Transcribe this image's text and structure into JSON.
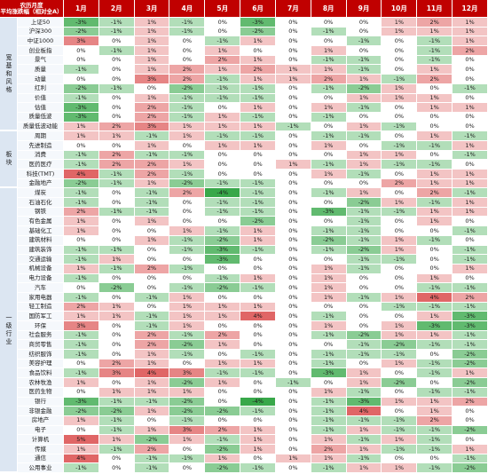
{
  "header": {
    "title_line1": "农历月度",
    "title_line2": "平均涨跌幅（相对全A）",
    "months": [
      "1月",
      "2月",
      "3月",
      "4月",
      "5月",
      "6月",
      "7月",
      "8月",
      "9月",
      "10月",
      "11月",
      "12月"
    ]
  },
  "colors": {
    "header_bg": "#c00000",
    "positive": "#e06666",
    "negative": "#38a84a",
    "group_bg": "#dce6f2"
  },
  "groups": [
    {
      "name": "宽基和风格",
      "rows": [
        {
          "label": "上证50",
          "values": [
            "-3%",
            "-1%",
            "1%",
            "-1%",
            "0%",
            "-3%",
            "0%",
            "0%",
            "0%",
            "1%",
            "2%",
            "1%"
          ]
        },
        {
          "label": "沪深300",
          "values": [
            "-2%",
            "-1%",
            "1%",
            "-1%",
            "0%",
            "-2%",
            "0%",
            "-1%",
            "0%",
            "1%",
            "1%",
            "1%"
          ]
        },
        {
          "label": "中证1000",
          "values": [
            "3%",
            "0%",
            "1%",
            "0%",
            "-1%",
            "1%",
            "0%",
            "0%",
            "-1%",
            "0%",
            "-1%",
            "1%"
          ]
        },
        {
          "label": "创业板指",
          "values": [
            "0%",
            "-1%",
            "1%",
            "0%",
            "1%",
            "0%",
            "0%",
            "1%",
            "0%",
            "0%",
            "-1%",
            "2%"
          ]
        },
        {
          "label": "景气",
          "values": [
            "0%",
            "0%",
            "1%",
            "0%",
            "2%",
            "1%",
            "0%",
            "-1%",
            "-1%",
            "0%",
            "-1%",
            "0%"
          ]
        },
        {
          "label": "质量",
          "values": [
            "-1%",
            "0%",
            "1%",
            "2%",
            "1%",
            "2%",
            "1%",
            "1%",
            "-1%",
            "0%",
            "1%",
            "0%"
          ]
        },
        {
          "label": "动量",
          "values": [
            "0%",
            "0%",
            "3%",
            "2%",
            "-1%",
            "1%",
            "1%",
            "2%",
            "1%",
            "-1%",
            "2%",
            "0%"
          ]
        },
        {
          "label": "红利",
          "values": [
            "-2%",
            "-1%",
            "0%",
            "-2%",
            "-1%",
            "-1%",
            "0%",
            "-1%",
            "-2%",
            "1%",
            "0%",
            "-1%"
          ]
        },
        {
          "label": "价值",
          "values": [
            "-1%",
            "0%",
            "1%",
            "-1%",
            "-1%",
            "-1%",
            "0%",
            "0%",
            "1%",
            "1%",
            "1%",
            "0%"
          ]
        },
        {
          "label": "估值",
          "values": [
            "-3%",
            "0%",
            "2%",
            "-1%",
            "0%",
            "1%",
            "0%",
            "1%",
            "-1%",
            "0%",
            "1%",
            "1%"
          ]
        },
        {
          "label": "质量低波",
          "values": [
            "-3%",
            "0%",
            "2%",
            "-1%",
            "1%",
            "-1%",
            "0%",
            "-1%",
            "0%",
            "0%",
            "0%",
            "0%"
          ]
        },
        {
          "label": "质量低波动能",
          "values": [
            "1%",
            "2%",
            "3%",
            "1%",
            "1%",
            "1%",
            "-1%",
            "0%",
            "1%",
            "-1%",
            "0%",
            "0%"
          ]
        }
      ]
    },
    {
      "name": "板块",
      "rows": [
        {
          "label": "周期",
          "values": [
            "1%",
            "1%",
            "-1%",
            "1%",
            "-1%",
            "-1%",
            "0%",
            "-1%",
            "-1%",
            "0%",
            "1%",
            "-1%"
          ]
        },
        {
          "label": "先进制造",
          "values": [
            "0%",
            "0%",
            "1%",
            "0%",
            "1%",
            "1%",
            "0%",
            "1%",
            "0%",
            "-1%",
            "-1%",
            "1%"
          ]
        },
        {
          "label": "消费",
          "values": [
            "-1%",
            "2%",
            "-1%",
            "-1%",
            "0%",
            "0%",
            "0%",
            "0%",
            "1%",
            "1%",
            "0%",
            "-1%"
          ]
        },
        {
          "label": "医药医疗",
          "values": [
            "-1%",
            "2%",
            "2%",
            "1%",
            "0%",
            "0%",
            "1%",
            "-1%",
            "1%",
            "-1%",
            "-1%",
            "0%"
          ]
        },
        {
          "label": "科技(TMT)",
          "values": [
            "4%",
            "-1%",
            "2%",
            "-1%",
            "0%",
            "0%",
            "0%",
            "1%",
            "-1%",
            "0%",
            "1%",
            "1%"
          ]
        },
        {
          "label": "金融地产",
          "values": [
            "-2%",
            "-1%",
            "1%",
            "-2%",
            "-1%",
            "-1%",
            "0%",
            "0%",
            "0%",
            "2%",
            "1%",
            "1%"
          ]
        }
      ]
    },
    {
      "name": "一级行业",
      "rows": [
        {
          "label": "煤炭",
          "values": [
            "-1%",
            "0%",
            "-1%",
            "2%",
            "-4%",
            "-1%",
            "0%",
            "-1%",
            "1%",
            "0%",
            "2%",
            "-1%"
          ]
        },
        {
          "label": "石油石化",
          "values": [
            "-1%",
            "0%",
            "-1%",
            "0%",
            "-1%",
            "-1%",
            "0%",
            "0%",
            "-2%",
            "1%",
            "-1%",
            "1%"
          ]
        },
        {
          "label": "钢铁",
          "values": [
            "2%",
            "-1%",
            "-1%",
            "0%",
            "-1%",
            "-1%",
            "0%",
            "-3%",
            "-1%",
            "-1%",
            "1%",
            "1%"
          ]
        },
        {
          "label": "有色金属",
          "values": [
            "1%",
            "0%",
            "1%",
            "0%",
            "0%",
            "-2%",
            "0%",
            "0%",
            "-1%",
            "0%",
            "1%",
            "0%"
          ]
        },
        {
          "label": "基础化工",
          "values": [
            "1%",
            "0%",
            "0%",
            "1%",
            "-1%",
            "1%",
            "0%",
            "-1%",
            "-1%",
            "0%",
            "0%",
            "-1%"
          ]
        },
        {
          "label": "建筑材料",
          "values": [
            "0%",
            "0%",
            "1%",
            "-1%",
            "-2%",
            "1%",
            "0%",
            "-2%",
            "-1%",
            "1%",
            "-1%",
            "0%"
          ]
        },
        {
          "label": "建筑装饰",
          "values": [
            "-1%",
            "-1%",
            "0%",
            "-1%",
            "-3%",
            "-1%",
            "0%",
            "-1%",
            "-2%",
            "1%",
            "0%",
            "-1%"
          ]
        },
        {
          "label": "交通运输",
          "values": [
            "-1%",
            "1%",
            "0%",
            "0%",
            "-3%",
            "0%",
            "0%",
            "0%",
            "-1%",
            "-1%",
            "0%",
            "-1%"
          ]
        },
        {
          "label": "机械设备",
          "values": [
            "1%",
            "-1%",
            "2%",
            "-1%",
            "0%",
            "0%",
            "0%",
            "1%",
            "-1%",
            "0%",
            "0%",
            "1%"
          ]
        },
        {
          "label": "电力设备",
          "values": [
            "-1%",
            "0%",
            "0%",
            "0%",
            "-1%",
            "1%",
            "0%",
            "1%",
            "0%",
            "0%",
            "1%",
            "0%"
          ]
        },
        {
          "label": "汽车",
          "values": [
            "0%",
            "-2%",
            "0%",
            "-1%",
            "-2%",
            "-1%",
            "0%",
            "1%",
            "0%",
            "0%",
            "-1%",
            "-1%"
          ]
        },
        {
          "label": "家用电器",
          "values": [
            "-1%",
            "0%",
            "-1%",
            "1%",
            "0%",
            "0%",
            "0%",
            "1%",
            "-1%",
            "1%",
            "4%",
            "2%"
          ]
        },
        {
          "label": "轻工制造",
          "values": [
            "2%",
            "1%",
            "0%",
            "1%",
            "1%",
            "1%",
            "0%",
            "0%",
            "0%",
            "-1%",
            "-1%",
            "-1%"
          ]
        },
        {
          "label": "国防军工",
          "values": [
            "1%",
            "1%",
            "-1%",
            "1%",
            "1%",
            "4%",
            "0%",
            "-1%",
            "0%",
            "0%",
            "1%",
            "-3%"
          ]
        },
        {
          "label": "环保",
          "values": [
            "3%",
            "0%",
            "-1%",
            "1%",
            "0%",
            "0%",
            "0%",
            "1%",
            "0%",
            "1%",
            "-3%",
            "-3%"
          ]
        },
        {
          "label": "社会服务",
          "values": [
            "-1%",
            "0%",
            "2%",
            "-1%",
            "2%",
            "0%",
            "0%",
            "-1%",
            "-2%",
            "1%",
            "1%",
            "-1%"
          ]
        },
        {
          "label": "商贸零售",
          "values": [
            "-1%",
            "0%",
            "2%",
            "-2%",
            "1%",
            "0%",
            "0%",
            "0%",
            "-1%",
            "-2%",
            "-1%",
            "-1%"
          ]
        },
        {
          "label": "纺织服饰",
          "values": [
            "-1%",
            "0%",
            "1%",
            "-1%",
            "0%",
            "-1%",
            "0%",
            "-1%",
            "-1%",
            "-1%",
            "0%",
            "-2%"
          ]
        },
        {
          "label": "美容护理",
          "values": [
            "0%",
            "2%",
            "1%",
            "0%",
            "1%",
            "1%",
            "0%",
            "-1%",
            "0%",
            "1%",
            "-1%",
            "-2%"
          ]
        },
        {
          "label": "食品饮料",
          "values": [
            "-1%",
            "3%",
            "4%",
            "3%",
            "-1%",
            "-1%",
            "0%",
            "-3%",
            "1%",
            "0%",
            "-1%",
            "1%"
          ]
        },
        {
          "label": "农林牧渔",
          "values": [
            "1%",
            "0%",
            "1%",
            "-2%",
            "1%",
            "0%",
            "-1%",
            "0%",
            "1%",
            "-2%",
            "0%",
            "-2%"
          ]
        },
        {
          "label": "医药生物",
          "values": [
            "0%",
            "1%",
            "1%",
            "1%",
            "0%",
            "0%",
            "0%",
            "1%",
            "-1%",
            "0%",
            "-1%",
            "-1%"
          ]
        },
        {
          "label": "银行",
          "values": [
            "-3%",
            "-1%",
            "-1%",
            "-2%",
            "0%",
            "-4%",
            "0%",
            "-1%",
            "-3%",
            "1%",
            "1%",
            "2%"
          ]
        },
        {
          "label": "非银金融",
          "values": [
            "-2%",
            "-2%",
            "1%",
            "-2%",
            "-2%",
            "-1%",
            "0%",
            "-1%",
            "4%",
            "0%",
            "1%",
            "0%"
          ]
        },
        {
          "label": "房地产",
          "values": [
            "1%",
            "-1%",
            "0%",
            "-1%",
            "0%",
            "0%",
            "0%",
            "-1%",
            "-1%",
            "-1%",
            "2%",
            "0%"
          ]
        },
        {
          "label": "电子",
          "values": [
            "0%",
            "-1%",
            "1%",
            "3%",
            "2%",
            "1%",
            "0%",
            "-1%",
            "1%",
            "-1%",
            "-1%",
            "-2%"
          ]
        },
        {
          "label": "计算机",
          "values": [
            "5%",
            "1%",
            "-2%",
            "1%",
            "-1%",
            "1%",
            "0%",
            "1%",
            "-1%",
            "1%",
            "-1%",
            "0%"
          ]
        },
        {
          "label": "传媒",
          "values": [
            "1%",
            "-1%",
            "2%",
            "0%",
            "-2%",
            "1%",
            "0%",
            "2%",
            "1%",
            "-1%",
            "-1%",
            "1%"
          ]
        },
        {
          "label": "通信",
          "values": [
            "4%",
            "0%",
            "-1%",
            "-1%",
            "1%",
            "0%",
            "1%",
            "1%",
            "-1%",
            "0%",
            "0%",
            "-1%"
          ]
        },
        {
          "label": "公用事业",
          "values": [
            "-1%",
            "0%",
            "-1%",
            "0%",
            "-2%",
            "-1%",
            "0%",
            "-1%",
            "1%",
            "1%",
            "-1%",
            "-2%"
          ]
        }
      ]
    }
  ]
}
